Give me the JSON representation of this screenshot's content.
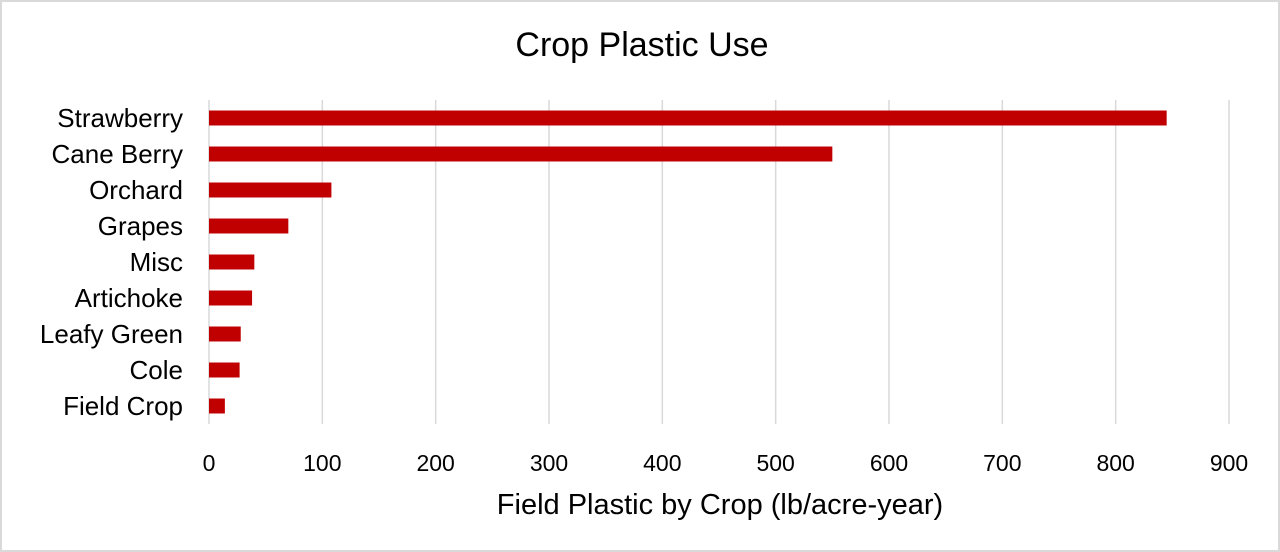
{
  "chart_data": {
    "type": "bar",
    "orientation": "horizontal",
    "title": "Crop Plastic Use",
    "xlabel": "Field Plastic by Crop (lb/acre-year)",
    "ylabel": "",
    "categories": [
      "Strawberry",
      "Cane Berry",
      "Orchard",
      "Grapes",
      "Misc",
      "Artichoke",
      "Leafy Green",
      "Cole",
      "Field Crop"
    ],
    "values": [
      845,
      550,
      108,
      70,
      40,
      38,
      28,
      27,
      14
    ],
    "xlim": [
      0,
      900
    ],
    "x_ticks": [
      "0",
      "100",
      "200",
      "300",
      "400",
      "500",
      "600",
      "700",
      "800",
      "900"
    ],
    "grid": "vertical",
    "legend": "none",
    "bar_color": "#c00000",
    "grid_color": "#d9d9d9"
  }
}
